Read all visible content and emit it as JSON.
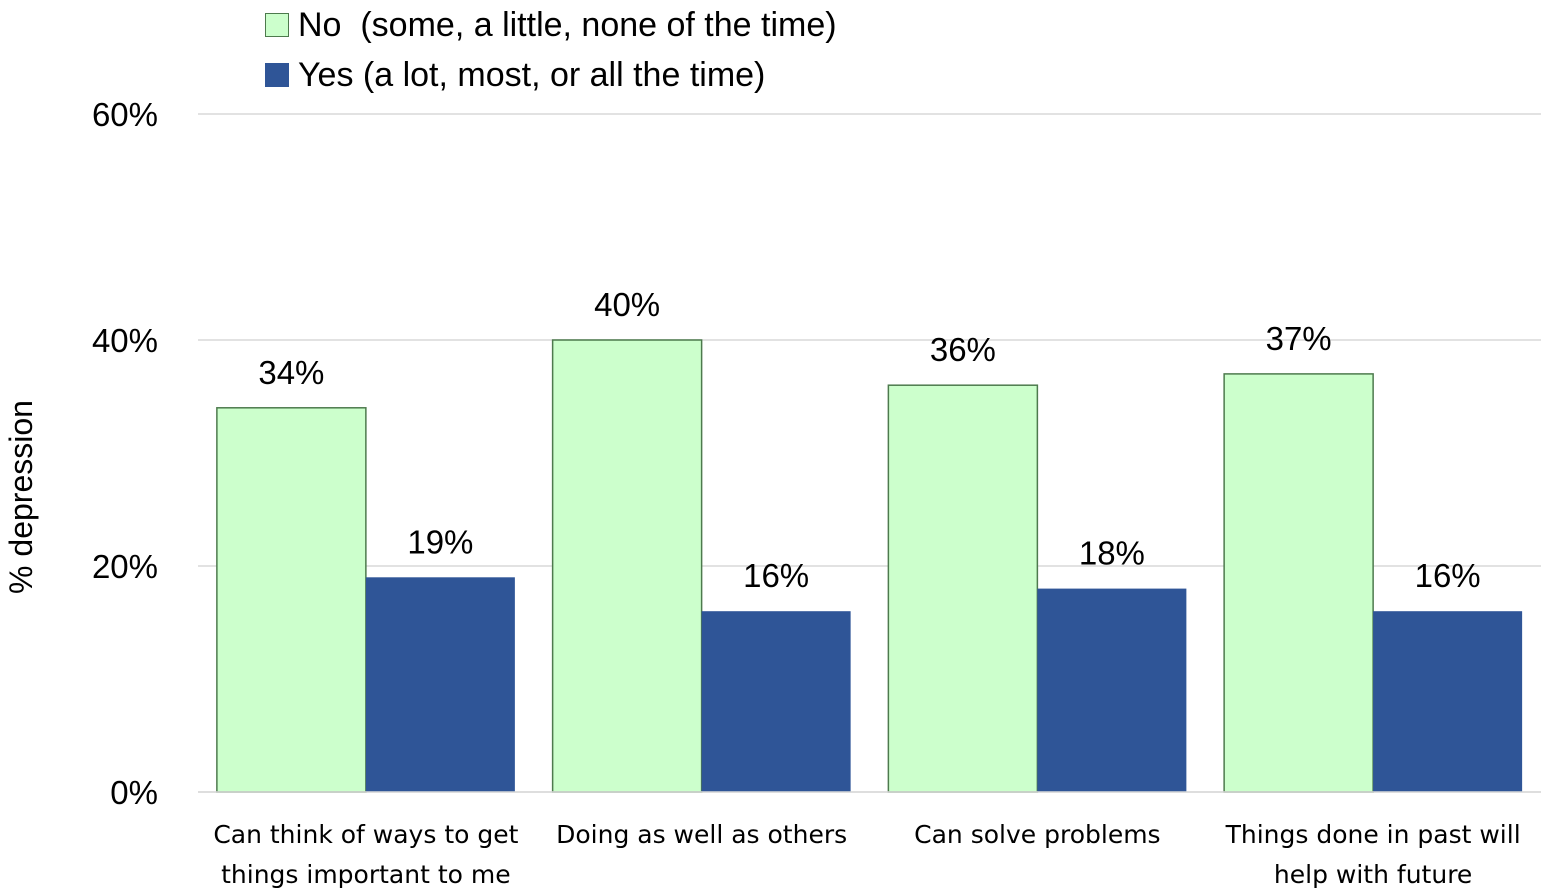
{
  "chart_data": {
    "type": "bar",
    "categories": [
      [
        "Can think of ways to get",
        "things important to me"
      ],
      [
        "Doing as well as others"
      ],
      [
        "Can solve problems"
      ],
      [
        "Things done in past will",
        "help with future"
      ]
    ],
    "series": [
      {
        "name": "No  (some, a little, none of the time)",
        "values": [
          34,
          40,
          36,
          37
        ],
        "data_labels": [
          "34%",
          "40%",
          "36%",
          "37%"
        ],
        "color": "#ccffcc",
        "stroke": "#4d7a4d"
      },
      {
        "name": "Yes (a lot, most, or all the time)",
        "values": [
          19,
          16,
          18,
          16
        ],
        "data_labels": [
          "19%",
          "16%",
          "18%",
          "16%"
        ],
        "color": "#2f5597"
      }
    ],
    "ylabel": "% depression",
    "ylim": [
      0,
      60
    ],
    "yticks": [
      0,
      20,
      40,
      60
    ],
    "ytick_labels": [
      "0%",
      "20%",
      "40%",
      "60%"
    ],
    "grid": true,
    "legend_position": "top-left"
  }
}
